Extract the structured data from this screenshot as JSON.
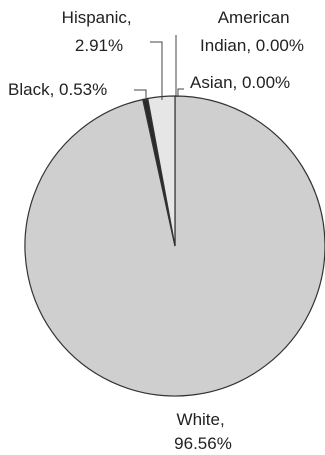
{
  "chart_data": {
    "type": "pie",
    "categories": [
      "American Indian",
      "Asian",
      "White",
      "Black",
      "Hispanic"
    ],
    "values": [
      0.0,
      0.0,
      96.56,
      0.53,
      2.91
    ],
    "colors": [
      "#ffffff",
      "#ffffff",
      "#cfcfcf",
      "#2a2a2a",
      "#e6e6e6"
    ],
    "outline_color": "#333333",
    "labels": [
      {
        "category": "American Indian",
        "lines": [
          "American",
          "Indian, 0.00%"
        ]
      },
      {
        "category": "Asian",
        "lines": [
          "Asian, 0.00%"
        ]
      },
      {
        "category": "White",
        "lines": [
          "White,",
          "96.56%"
        ]
      },
      {
        "category": "Black",
        "lines": [
          "Black, 0.53%"
        ]
      },
      {
        "category": "Hispanic",
        "lines": [
          "Hispanic,",
          "2.91%"
        ]
      }
    ]
  }
}
